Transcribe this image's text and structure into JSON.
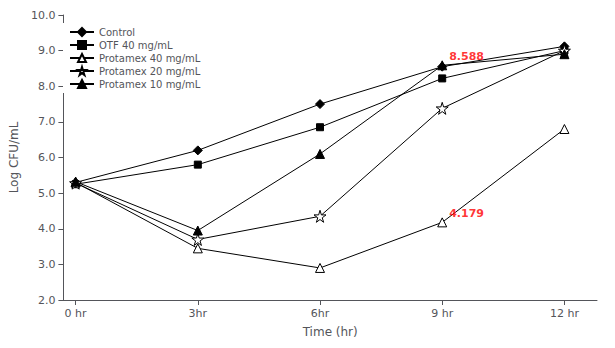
{
  "chart_data": {
    "type": "line",
    "x": [
      0,
      3,
      6,
      9,
      12
    ],
    "xlim": [
      -0.3,
      12.8
    ],
    "xticks": [
      {
        "value": 0,
        "label": "0 hr"
      },
      {
        "value": 3,
        "label": "3hr"
      },
      {
        "value": 6,
        "label": "6hr"
      },
      {
        "value": 9,
        "label": "9 hr"
      },
      {
        "value": 12,
        "label": "12 hr"
      }
    ],
    "ylim": [
      2.0,
      10.0
    ],
    "yticks": [
      {
        "value": 2.0,
        "label": "2.0"
      },
      {
        "value": 3.0,
        "label": "3.0"
      },
      {
        "value": 4.0,
        "label": "4.0"
      },
      {
        "value": 5.0,
        "label": "5.0"
      },
      {
        "value": 6.0,
        "label": "6.0"
      },
      {
        "value": 7.0,
        "label": "7.0"
      },
      {
        "value": 8.0,
        "label": "8.0"
      },
      {
        "value": 9.0,
        "label": "9.0"
      },
      {
        "value": 10.0,
        "label": "10.0"
      }
    ],
    "xlabel": "Time (hr)",
    "ylabel": "Log CFU/mL",
    "grid": false,
    "legend": "upper left",
    "series": [
      {
        "name": "Control",
        "color": "#000000",
        "marker": "diamond",
        "values": [
          5.3,
          6.2,
          7.5,
          8.55,
          9.12
        ]
      },
      {
        "name": "OTF 40 mg/mL",
        "color": "#000000",
        "marker": "square",
        "values": [
          5.25,
          5.8,
          6.85,
          8.22,
          9.0
        ]
      },
      {
        "name": "Protamex 40 mg/mL",
        "color": "#000000",
        "marker": "triangle-open",
        "values": [
          5.3,
          3.45,
          2.9,
          4.179,
          6.8
        ]
      },
      {
        "name": "Protamex 20 mg/mL",
        "color": "#000000",
        "marker": "star-open",
        "values": [
          5.28,
          3.7,
          4.35,
          7.38,
          9.0
        ]
      },
      {
        "name": "Protamex 10 mg/mL",
        "color": "#000000",
        "marker": "triangle",
        "values": [
          5.32,
          3.95,
          6.1,
          8.588,
          8.9
        ]
      }
    ],
    "annotations": [
      {
        "text": "8.588",
        "x": 9,
        "y": 8.588,
        "color": "#ff0000"
      },
      {
        "text": "4.179",
        "x": 9,
        "y": 4.179,
        "color": "#ff0000"
      }
    ]
  }
}
